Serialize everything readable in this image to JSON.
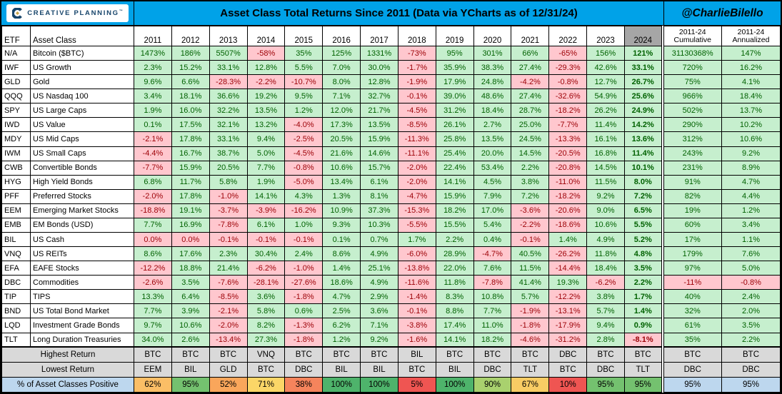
{
  "header": {
    "brand": "CREATIVE PLANNING",
    "brand_mark": "™",
    "title": "Asset Class Total Returns Since 2011 (Data via YCharts as of 12/31/24)",
    "handle": "@CharlieBilello"
  },
  "colors": {
    "band_blue": "#00A2E8",
    "positive_bg": "#C6EFCE",
    "positive_text": "#006100",
    "negative_bg": "#FFC7CE",
    "negative_text": "#9C0006",
    "header_2024_bg": "#A6A6A6",
    "summary_gray": "#D9D9D9",
    "label_blue": "#BDD7EE",
    "brand_navy": "#17456B",
    "logo_gold": "#C9A44C"
  },
  "chart_data": {
    "type": "table",
    "title": "Asset Class Total Returns Since 2011 (Data via YCharts as of 12/31/24)",
    "col_headers": {
      "etf": "ETF",
      "asset_class": "Asset Class",
      "years": [
        "2011",
        "2012",
        "2013",
        "2014",
        "2015",
        "2016",
        "2017",
        "2018",
        "2019",
        "2020",
        "2021",
        "2022",
        "2023",
        "2024"
      ],
      "cumulative": [
        "2011-24",
        "Cumulative"
      ],
      "annualized": [
        "2011-24",
        "Annualized"
      ]
    },
    "rows": [
      {
        "etf": "N/A",
        "asset_class": "Bitcoin ($BTC)",
        "values": [
          "1473%",
          "186%",
          "5507%",
          "-58%",
          "35%",
          "125%",
          "1331%",
          "-73%",
          "95%",
          "301%",
          "66%",
          "-65%",
          "156%",
          "121%"
        ],
        "cumulative": "31130368%",
        "annualized": "147%"
      },
      {
        "etf": "IWF",
        "asset_class": "US Growth",
        "values": [
          "2.3%",
          "15.2%",
          "33.1%",
          "12.8%",
          "5.5%",
          "7.0%",
          "30.0%",
          "-1.7%",
          "35.9%",
          "38.3%",
          "27.4%",
          "-29.3%",
          "42.6%",
          "33.1%"
        ],
        "cumulative": "720%",
        "annualized": "16.2%"
      },
      {
        "etf": "GLD",
        "asset_class": "Gold",
        "values": [
          "9.6%",
          "6.6%",
          "-28.3%",
          "-2.2%",
          "-10.7%",
          "8.0%",
          "12.8%",
          "-1.9%",
          "17.9%",
          "24.8%",
          "-4.2%",
          "-0.8%",
          "12.7%",
          "26.7%"
        ],
        "cumulative": "75%",
        "annualized": "4.1%"
      },
      {
        "etf": "QQQ",
        "asset_class": "US Nasdaq 100",
        "values": [
          "3.4%",
          "18.1%",
          "36.6%",
          "19.2%",
          "9.5%",
          "7.1%",
          "32.7%",
          "-0.1%",
          "39.0%",
          "48.6%",
          "27.4%",
          "-32.6%",
          "54.9%",
          "25.6%"
        ],
        "cumulative": "966%",
        "annualized": "18.4%"
      },
      {
        "etf": "SPY",
        "asset_class": "US Large Caps",
        "values": [
          "1.9%",
          "16.0%",
          "32.2%",
          "13.5%",
          "1.2%",
          "12.0%",
          "21.7%",
          "-4.5%",
          "31.2%",
          "18.4%",
          "28.7%",
          "-18.2%",
          "26.2%",
          "24.9%"
        ],
        "cumulative": "502%",
        "annualized": "13.7%"
      },
      {
        "etf": "IWD",
        "asset_class": "US Value",
        "values": [
          "0.1%",
          "17.5%",
          "32.1%",
          "13.2%",
          "-4.0%",
          "17.3%",
          "13.5%",
          "-8.5%",
          "26.1%",
          "2.7%",
          "25.0%",
          "-7.7%",
          "11.4%",
          "14.2%"
        ],
        "cumulative": "290%",
        "annualized": "10.2%"
      },
      {
        "etf": "MDY",
        "asset_class": "US Mid Caps",
        "values": [
          "-2.1%",
          "17.8%",
          "33.1%",
          "9.4%",
          "-2.5%",
          "20.5%",
          "15.9%",
          "-11.3%",
          "25.8%",
          "13.5%",
          "24.5%",
          "-13.3%",
          "16.1%",
          "13.6%"
        ],
        "cumulative": "312%",
        "annualized": "10.6%"
      },
      {
        "etf": "IWM",
        "asset_class": "US Small Caps",
        "values": [
          "-4.4%",
          "16.7%",
          "38.7%",
          "5.0%",
          "-4.5%",
          "21.6%",
          "14.6%",
          "-11.1%",
          "25.4%",
          "20.0%",
          "14.5%",
          "-20.5%",
          "16.8%",
          "11.4%"
        ],
        "cumulative": "243%",
        "annualized": "9.2%"
      },
      {
        "etf": "CWB",
        "asset_class": "Convertible Bonds",
        "values": [
          "-7.7%",
          "15.9%",
          "20.5%",
          "7.7%",
          "-0.8%",
          "10.6%",
          "15.7%",
          "-2.0%",
          "22.4%",
          "53.4%",
          "2.2%",
          "-20.8%",
          "14.5%",
          "10.1%"
        ],
        "cumulative": "231%",
        "annualized": "8.9%"
      },
      {
        "etf": "HYG",
        "asset_class": "High Yield Bonds",
        "values": [
          "6.8%",
          "11.7%",
          "5.8%",
          "1.9%",
          "-5.0%",
          "13.4%",
          "6.1%",
          "-2.0%",
          "14.1%",
          "4.5%",
          "3.8%",
          "-11.0%",
          "11.5%",
          "8.0%"
        ],
        "cumulative": "91%",
        "annualized": "4.7%"
      },
      {
        "etf": "PFF",
        "asset_class": "Preferred Stocks",
        "values": [
          "-2.0%",
          "17.8%",
          "-1.0%",
          "14.1%",
          "4.3%",
          "1.3%",
          "8.1%",
          "-4.7%",
          "15.9%",
          "7.9%",
          "7.2%",
          "-18.2%",
          "9.2%",
          "7.2%"
        ],
        "cumulative": "82%",
        "annualized": "4.4%"
      },
      {
        "etf": "EEM",
        "asset_class": "Emerging Market Stocks",
        "values": [
          "-18.8%",
          "19.1%",
          "-3.7%",
          "-3.9%",
          "-16.2%",
          "10.9%",
          "37.3%",
          "-15.3%",
          "18.2%",
          "17.0%",
          "-3.6%",
          "-20.6%",
          "9.0%",
          "6.5%"
        ],
        "cumulative": "19%",
        "annualized": "1.2%"
      },
      {
        "etf": "EMB",
        "asset_class": "EM Bonds (USD)",
        "values": [
          "7.7%",
          "16.9%",
          "-7.8%",
          "6.1%",
          "1.0%",
          "9.3%",
          "10.3%",
          "-5.5%",
          "15.5%",
          "5.4%",
          "-2.2%",
          "-18.6%",
          "10.6%",
          "5.5%"
        ],
        "cumulative": "60%",
        "annualized": "3.4%"
      },
      {
        "etf": "BIL",
        "asset_class": "US Cash",
        "values": [
          "0.0%",
          "0.0%",
          "-0.1%",
          "-0.1%",
          "-0.1%",
          "0.1%",
          "0.7%",
          "1.7%",
          "2.2%",
          "0.4%",
          "-0.1%",
          "1.4%",
          "4.9%",
          "5.2%"
        ],
        "cumulative": "17%",
        "annualized": "1.1%"
      },
      {
        "etf": "VNQ",
        "asset_class": "US REITs",
        "values": [
          "8.6%",
          "17.6%",
          "2.3%",
          "30.4%",
          "2.4%",
          "8.6%",
          "4.9%",
          "-6.0%",
          "28.9%",
          "-4.7%",
          "40.5%",
          "-26.2%",
          "11.8%",
          "4.8%"
        ],
        "cumulative": "179%",
        "annualized": "7.6%"
      },
      {
        "etf": "EFA",
        "asset_class": "EAFE Stocks",
        "values": [
          "-12.2%",
          "18.8%",
          "21.4%",
          "-6.2%",
          "-1.0%",
          "1.4%",
          "25.1%",
          "-13.8%",
          "22.0%",
          "7.6%",
          "11.5%",
          "-14.4%",
          "18.4%",
          "3.5%"
        ],
        "cumulative": "97%",
        "annualized": "5.0%"
      },
      {
        "etf": "DBC",
        "asset_class": "Commodities",
        "values": [
          "-2.6%",
          "3.5%",
          "-7.6%",
          "-28.1%",
          "-27.6%",
          "18.6%",
          "4.9%",
          "-11.6%",
          "11.8%",
          "-7.8%",
          "41.4%",
          "19.3%",
          "-6.2%",
          "2.2%"
        ],
        "cumulative": "-11%",
        "annualized": "-0.8%"
      },
      {
        "etf": "TIP",
        "asset_class": "TIPS",
        "values": [
          "13.3%",
          "6.4%",
          "-8.5%",
          "3.6%",
          "-1.8%",
          "4.7%",
          "2.9%",
          "-1.4%",
          "8.3%",
          "10.8%",
          "5.7%",
          "-12.2%",
          "3.8%",
          "1.7%"
        ],
        "cumulative": "40%",
        "annualized": "2.4%"
      },
      {
        "etf": "BND",
        "asset_class": "US Total Bond Market",
        "values": [
          "7.7%",
          "3.9%",
          "-2.1%",
          "5.8%",
          "0.6%",
          "2.5%",
          "3.6%",
          "-0.1%",
          "8.8%",
          "7.7%",
          "-1.9%",
          "-13.1%",
          "5.7%",
          "1.4%"
        ],
        "cumulative": "32%",
        "annualized": "2.0%"
      },
      {
        "etf": "LQD",
        "asset_class": "Investment Grade Bonds",
        "values": [
          "9.7%",
          "10.6%",
          "-2.0%",
          "8.2%",
          "-1.3%",
          "6.2%",
          "7.1%",
          "-3.8%",
          "17.4%",
          "11.0%",
          "-1.8%",
          "-17.9%",
          "9.4%",
          "0.9%"
        ],
        "cumulative": "61%",
        "annualized": "3.5%"
      },
      {
        "etf": "TLT",
        "asset_class": "Long Duration Treasuries",
        "values": [
          "34.0%",
          "2.6%",
          "-13.4%",
          "27.3%",
          "-1.8%",
          "1.2%",
          "9.2%",
          "-1.6%",
          "14.1%",
          "18.2%",
          "-4.6%",
          "-31.2%",
          "2.8%",
          "-8.1%"
        ],
        "cumulative": "35%",
        "annualized": "2.2%"
      }
    ],
    "summary_rows": [
      {
        "label": "Highest Return",
        "style": "gray",
        "values": [
          "BTC",
          "BTC",
          "BTC",
          "VNQ",
          "BTC",
          "BTC",
          "BTC",
          "BIL",
          "BTC",
          "BTC",
          "BTC",
          "DBC",
          "BTC",
          "BTC"
        ],
        "cumulative": "BTC",
        "annualized": "BTC"
      },
      {
        "label": "Lowest Return",
        "style": "gray",
        "values": [
          "EEM",
          "BIL",
          "GLD",
          "BTC",
          "DBC",
          "BIL",
          "BIL",
          "BTC",
          "BIL",
          "DBC",
          "TLT",
          "BTC",
          "DBC",
          "TLT"
        ],
        "cumulative": "DBC",
        "annualized": "DBC"
      },
      {
        "label": "% of Asset Classes Positive",
        "style": "blue",
        "values": [
          "62%",
          "95%",
          "52%",
          "71%",
          "38%",
          "100%",
          "100%",
          "5%",
          "100%",
          "90%",
          "67%",
          "10%",
          "95%",
          "95%"
        ],
        "cell_colors": [
          "#FBBE66",
          "#74C16F",
          "#F9A65B",
          "#FBD667",
          "#F5845C",
          "#4EB36B",
          "#4EB36B",
          "#EF5552",
          "#4EB36B",
          "#A9D16E",
          "#F8CC64",
          "#EF5552",
          "#74C16F",
          "#74C16F"
        ],
        "cumulative": "95%",
        "annualized": "95%"
      }
    ]
  }
}
